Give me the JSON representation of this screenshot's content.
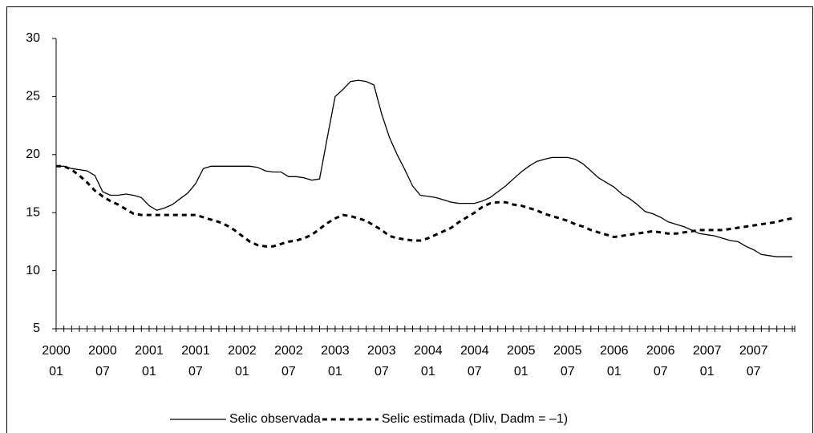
{
  "chart_data": {
    "type": "line",
    "categories": [
      [
        "2000",
        "01"
      ],
      null,
      null,
      null,
      null,
      null,
      [
        "2000",
        "07"
      ],
      null,
      null,
      null,
      null,
      null,
      [
        "2001",
        "01"
      ],
      null,
      null,
      null,
      null,
      null,
      [
        "2001",
        "07"
      ],
      null,
      null,
      null,
      null,
      null,
      [
        "2002",
        "01"
      ],
      null,
      null,
      null,
      null,
      null,
      [
        "2002",
        "07"
      ],
      null,
      null,
      null,
      null,
      null,
      [
        "2003",
        "01"
      ],
      null,
      null,
      null,
      null,
      null,
      [
        "2003",
        "07"
      ],
      null,
      null,
      null,
      null,
      null,
      [
        "2004",
        "01"
      ],
      null,
      null,
      null,
      null,
      null,
      [
        "2004",
        "07"
      ],
      null,
      null,
      null,
      null,
      null,
      [
        "2005",
        "01"
      ],
      null,
      null,
      null,
      null,
      null,
      [
        "2005",
        "07"
      ],
      null,
      null,
      null,
      null,
      null,
      [
        "2006",
        "01"
      ],
      null,
      null,
      null,
      null,
      null,
      [
        "2006",
        "07"
      ],
      null,
      null,
      null,
      null,
      null,
      [
        "2007",
        "01"
      ],
      null,
      null,
      null,
      null,
      null,
      [
        "2007",
        "07"
      ],
      null,
      null,
      null,
      null,
      null
    ],
    "series": [
      {
        "name": "Selic observada",
        "color": "#000000",
        "line_style": "solid",
        "values": [
          19.0,
          19.0,
          18.8,
          18.7,
          18.6,
          18.2,
          16.8,
          16.5,
          16.5,
          16.6,
          16.5,
          16.3,
          15.6,
          15.2,
          15.4,
          15.7,
          16.2,
          16.7,
          17.5,
          18.8,
          19.0,
          19.0,
          19.0,
          19.0,
          19.0,
          19.0,
          18.9,
          18.6,
          18.5,
          18.5,
          18.1,
          18.1,
          18.0,
          17.8,
          17.9,
          21.5,
          25.0,
          25.6,
          26.3,
          26.4,
          26.3,
          26.0,
          23.5,
          21.5,
          20.0,
          18.7,
          17.3,
          16.5,
          16.4,
          16.3,
          16.1,
          15.9,
          15.8,
          15.8,
          15.8,
          16.0,
          16.3,
          16.8,
          17.3,
          17.9,
          18.5,
          19.0,
          19.4,
          19.6,
          19.75,
          19.75,
          19.75,
          19.6,
          19.2,
          18.6,
          18.0,
          17.6,
          17.2,
          16.6,
          16.2,
          15.7,
          15.1,
          14.9,
          14.6,
          14.2,
          14.0,
          13.8,
          13.5,
          13.2,
          13.1,
          13.0,
          12.8,
          12.6,
          12.5,
          12.1,
          11.8,
          11.4,
          11.3,
          11.2,
          11.2,
          11.2
        ]
      },
      {
        "name": "Selic estimada (Dliv, Dadm = –1)",
        "color": "#000000",
        "line_style": "dashed",
        "values": [
          19.0,
          19.0,
          18.7,
          18.2,
          17.6,
          16.9,
          16.4,
          16.0,
          15.7,
          15.3,
          14.9,
          14.8,
          14.8,
          14.8,
          14.8,
          14.8,
          14.8,
          14.8,
          14.8,
          14.6,
          14.4,
          14.2,
          13.9,
          13.5,
          13.0,
          12.5,
          12.2,
          12.1,
          12.1,
          12.3,
          12.5,
          12.6,
          12.8,
          13.1,
          13.6,
          14.1,
          14.5,
          14.8,
          14.7,
          14.5,
          14.3,
          13.9,
          13.5,
          13.0,
          12.8,
          12.7,
          12.6,
          12.6,
          12.8,
          13.1,
          13.4,
          13.7,
          14.2,
          14.6,
          15.0,
          15.5,
          15.8,
          15.9,
          15.9,
          15.7,
          15.6,
          15.4,
          15.2,
          14.9,
          14.7,
          14.5,
          14.3,
          14.0,
          13.8,
          13.5,
          13.3,
          13.1,
          12.9,
          13.0,
          13.1,
          13.2,
          13.3,
          13.4,
          13.3,
          13.2,
          13.2,
          13.3,
          13.4,
          13.5,
          13.5,
          13.5,
          13.5,
          13.6,
          13.7,
          13.8,
          13.9,
          14.0,
          14.1,
          14.2,
          14.4,
          14.5
        ]
      }
    ],
    "ylim": [
      5,
      30
    ],
    "yticks": [
      5,
      10,
      15,
      20,
      25,
      30
    ],
    "legend": "bottom"
  }
}
